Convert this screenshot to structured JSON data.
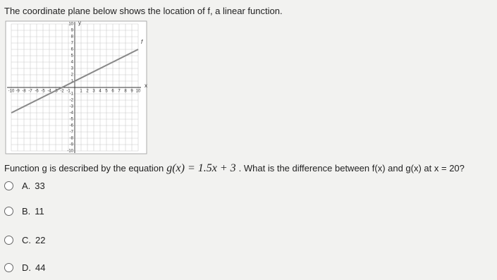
{
  "prompt": "The coordinate plane below shows the location of f, a linear function.",
  "graph": {
    "x_label": "x",
    "y_label": "y",
    "line_label": "f",
    "xlim": [
      -10,
      10
    ],
    "ylim": [
      -10,
      10
    ],
    "xticks": [
      -10,
      -9,
      -8,
      -7,
      -6,
      -5,
      -4,
      -3,
      -2,
      -1,
      1,
      2,
      3,
      4,
      5,
      6,
      7,
      8,
      9,
      10
    ],
    "yticks": [
      -10,
      -9,
      -8,
      -7,
      -6,
      -5,
      -4,
      -3,
      -2,
      -1,
      1,
      2,
      3,
      4,
      5,
      6,
      7,
      8,
      9,
      10
    ],
    "line": {
      "x": [
        -10,
        10
      ],
      "y": [
        -4,
        6
      ]
    }
  },
  "question": {
    "before": "Function g is described by the equation",
    "equation": "g(x) = 1.5x + 3",
    "after": ". What is the difference between f(x) and g(x) at x = 20?"
  },
  "options": [
    {
      "letter": "A.",
      "text": "33"
    },
    {
      "letter": "B.",
      "text": "11"
    },
    {
      "letter": "C.",
      "text": "22"
    },
    {
      "letter": "D.",
      "text": "44"
    }
  ]
}
